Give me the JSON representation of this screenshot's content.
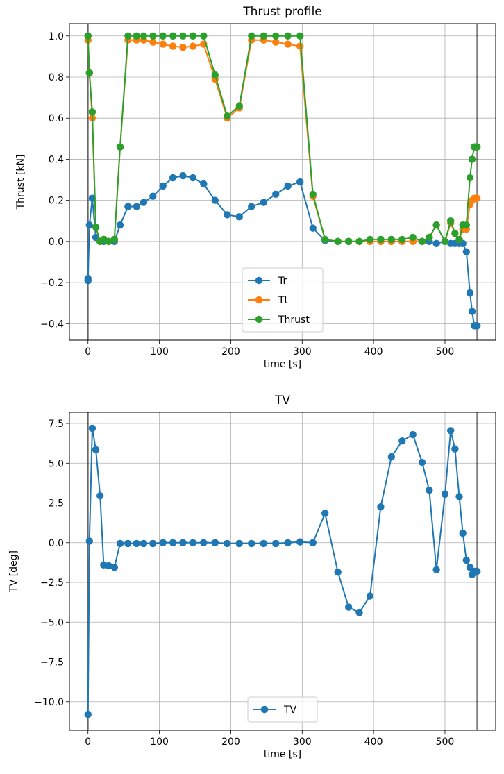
{
  "chart_data": [
    {
      "type": "line",
      "title": "Thrust profile",
      "xlabel": "time [s]",
      "ylabel": "Thrust [kN]",
      "xlim": [
        -26,
        571
      ],
      "ylim": [
        -0.48,
        1.06
      ],
      "xticks": [
        0,
        100,
        200,
        300,
        400,
        500
      ],
      "xtick_labels": [
        "0",
        "100",
        "200",
        "300",
        "400",
        "500"
      ],
      "yticks": [
        -0.4,
        -0.2,
        0.0,
        0.2,
        0.4,
        0.6,
        0.8,
        1.0
      ],
      "ytick_labels": [
        "−0.4",
        "−0.2",
        "0.0",
        "0.2",
        "0.4",
        "0.6",
        "0.8",
        "1.0"
      ],
      "grid": true,
      "vlines": [
        0,
        545
      ],
      "legend_position": "lower-center",
      "series": [
        {
          "name": "Tr",
          "color": "#1f77b4",
          "x": [
            0,
            0,
            2,
            6,
            11,
            17,
            22,
            29,
            37,
            45,
            56,
            68,
            78,
            91,
            105,
            119,
            133,
            147,
            162,
            178,
            195,
            212,
            229,
            246,
            263,
            280,
            297,
            315,
            332,
            350,
            365,
            380,
            395,
            410,
            425,
            440,
            455,
            468,
            478,
            488,
            500,
            508,
            514,
            520,
            525,
            530,
            535,
            538,
            541,
            543,
            545
          ],
          "y": [
            -0.18,
            -0.19,
            0.08,
            0.21,
            0.02,
            0.0,
            0.0,
            0.0,
            0.0,
            0.08,
            0.17,
            0.17,
            0.19,
            0.22,
            0.27,
            0.31,
            0.32,
            0.31,
            0.28,
            0.2,
            0.13,
            0.12,
            0.17,
            0.19,
            0.23,
            0.27,
            0.29,
            0.065,
            0.005,
            0.0,
            0.0,
            0.0,
            0.0,
            0.0,
            0.0,
            0.0,
            0.0,
            0.0,
            0.0,
            -0.01,
            0.0,
            -0.01,
            -0.01,
            -0.01,
            -0.01,
            -0.05,
            -0.25,
            -0.34,
            -0.41,
            -0.41,
            -0.41
          ]
        },
        {
          "name": "Tt",
          "color": "#ff7f0e",
          "x": [
            0,
            0,
            2,
            6,
            11,
            17,
            22,
            29,
            37,
            45,
            56,
            68,
            78,
            91,
            105,
            119,
            133,
            147,
            162,
            178,
            195,
            212,
            229,
            246,
            263,
            280,
            297,
            315,
            332,
            350,
            365,
            380,
            395,
            410,
            425,
            440,
            455,
            468,
            478,
            488,
            500,
            508,
            514,
            520,
            525,
            530,
            535,
            538,
            541,
            543,
            545
          ],
          "y": [
            0.98,
            0.98,
            0.82,
            0.6,
            0.07,
            0.0,
            0.01,
            0.0,
            0.01,
            0.46,
            0.98,
            0.98,
            0.98,
            0.97,
            0.96,
            0.95,
            0.945,
            0.95,
            0.96,
            0.79,
            0.6,
            0.65,
            0.98,
            0.98,
            0.97,
            0.96,
            0.95,
            0.22,
            0.01,
            0.0,
            0.0,
            0.0,
            0.0,
            0.0,
            0.0,
            0.0,
            0.0,
            0.0,
            0.02,
            0.08,
            0.0,
            0.09,
            0.04,
            0.01,
            0.06,
            0.06,
            0.18,
            0.2,
            0.21,
            0.21,
            0.21
          ]
        },
        {
          "name": "Thrust",
          "color": "#2ca02c",
          "x": [
            0,
            0,
            2,
            6,
            11,
            17,
            22,
            29,
            37,
            45,
            56,
            68,
            78,
            91,
            105,
            119,
            133,
            147,
            162,
            178,
            195,
            212,
            229,
            246,
            263,
            280,
            297,
            315,
            332,
            350,
            365,
            380,
            395,
            410,
            425,
            440,
            455,
            468,
            478,
            488,
            500,
            508,
            514,
            520,
            525,
            530,
            535,
            538,
            541,
            543,
            545
          ],
          "y": [
            1.0,
            1.0,
            0.82,
            0.63,
            0.07,
            0.0,
            0.01,
            0.0,
            0.01,
            0.46,
            1.0,
            1.0,
            1.0,
            1.0,
            1.0,
            1.0,
            1.0,
            1.0,
            1.0,
            0.81,
            0.61,
            0.66,
            1.0,
            1.0,
            1.0,
            1.0,
            1.0,
            0.23,
            0.01,
            0.0,
            0.0,
            0.0,
            0.01,
            0.01,
            0.01,
            0.01,
            0.02,
            0.0,
            0.02,
            0.08,
            0.0,
            0.1,
            0.04,
            0.01,
            0.08,
            0.08,
            0.31,
            0.4,
            0.46,
            0.46,
            0.46
          ]
        }
      ]
    },
    {
      "type": "line",
      "title": "TV",
      "xlabel": "time [s]",
      "ylabel": "TV [deg]",
      "xlim": [
        -26,
        571
      ],
      "ylim": [
        -11.8,
        8.2
      ],
      "xticks": [
        0,
        100,
        200,
        300,
        400,
        500
      ],
      "xtick_labels": [
        "0",
        "100",
        "200",
        "300",
        "400",
        "500"
      ],
      "yticks": [
        -10.0,
        -7.5,
        -5.0,
        -2.5,
        0.0,
        2.5,
        5.0,
        7.5
      ],
      "ytick_labels": [
        "−10.0",
        "−7.5",
        "−5.0",
        "−2.5",
        "0.0",
        "2.5",
        "5.0",
        "7.5"
      ],
      "grid": true,
      "vlines": [
        0,
        545
      ],
      "legend_position": "lower-center",
      "series": [
        {
          "name": "TV",
          "color": "#1f77b4",
          "x": [
            0,
            2,
            6,
            11,
            17,
            22,
            29,
            37,
            45,
            56,
            68,
            78,
            91,
            105,
            119,
            133,
            147,
            162,
            178,
            195,
            212,
            229,
            246,
            263,
            280,
            297,
            315,
            332,
            350,
            365,
            380,
            395,
            410,
            425,
            440,
            455,
            468,
            478,
            488,
            500,
            508,
            514,
            520,
            525,
            530,
            535,
            538,
            541,
            543,
            545
          ],
          "y": [
            -10.8,
            0.1,
            7.2,
            5.85,
            2.95,
            -1.4,
            -1.45,
            -1.55,
            -0.05,
            -0.05,
            -0.05,
            -0.05,
            -0.05,
            0.0,
            0.0,
            0.0,
            0.0,
            0.0,
            0.0,
            -0.05,
            -0.05,
            -0.05,
            -0.05,
            -0.05,
            0.0,
            0.05,
            0.0,
            1.85,
            -1.85,
            -4.05,
            -4.4,
            -3.35,
            2.25,
            5.4,
            6.4,
            6.8,
            5.05,
            3.3,
            -1.7,
            3.05,
            7.05,
            5.9,
            2.9,
            0.6,
            -1.1,
            -1.55,
            -2.0,
            -1.8,
            -1.8,
            -1.8
          ]
        }
      ]
    }
  ]
}
